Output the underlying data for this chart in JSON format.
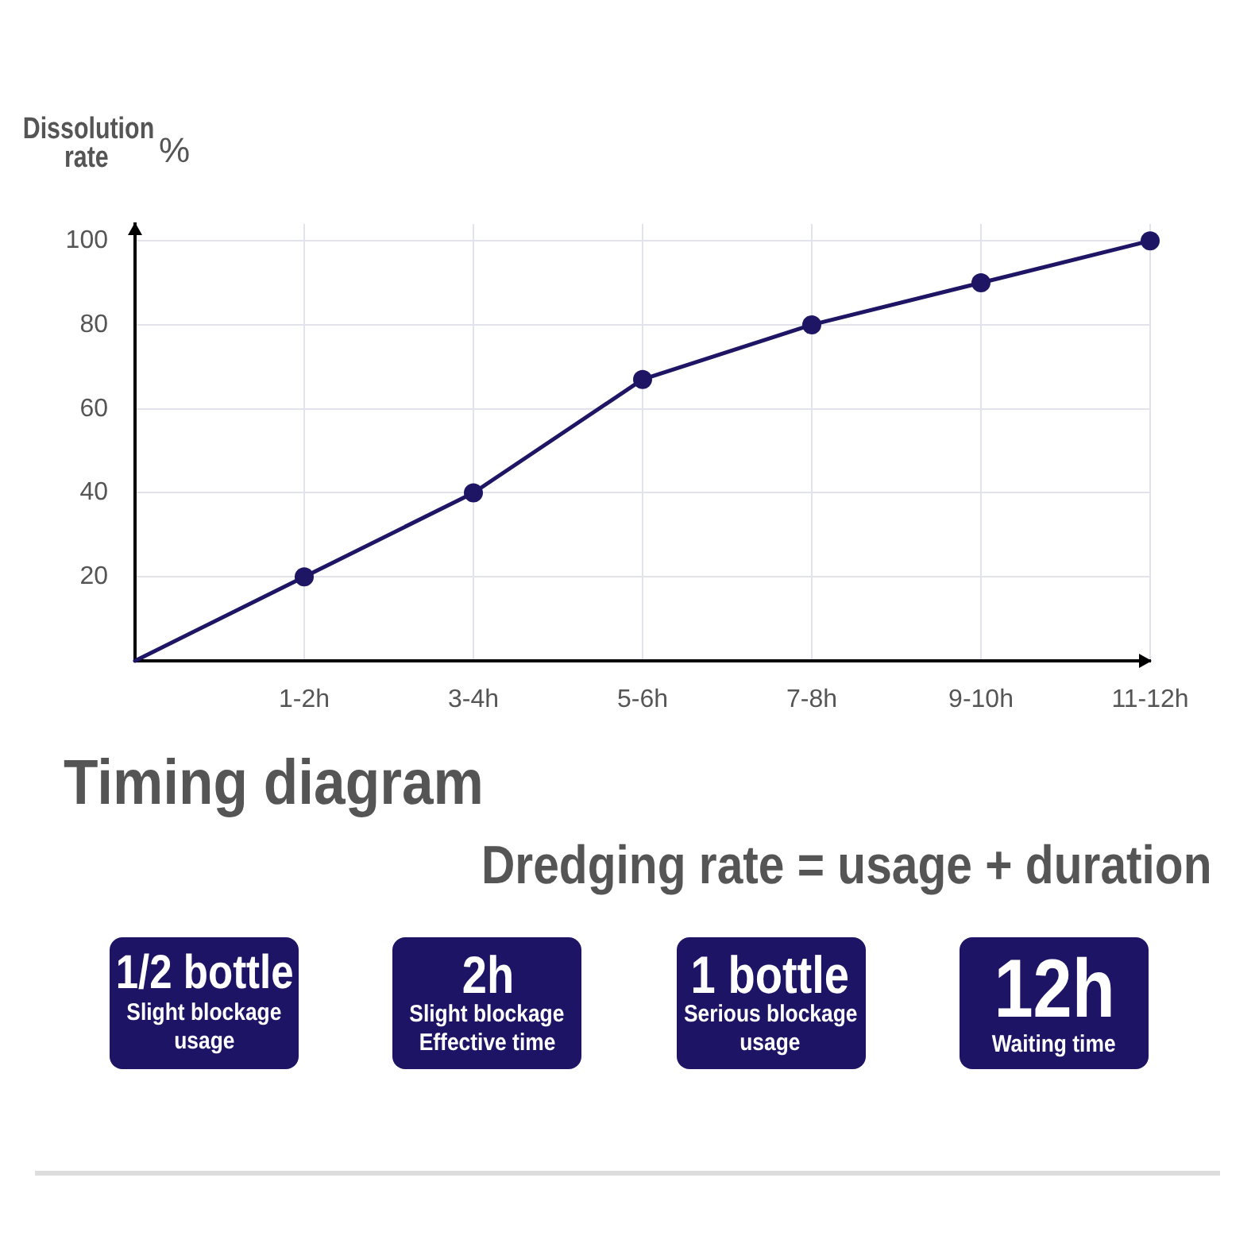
{
  "chart_data": [
    {
      "type": "line",
      "ylabel": "Dissolution rate %",
      "categories": [
        null,
        "1-2h",
        "3-4h",
        "5-6h",
        "7-8h",
        "9-10h",
        "11-12h"
      ],
      "values": [
        0,
        20,
        40,
        67,
        80,
        90,
        100
      ],
      "color": "#1e1664",
      "ylim": [
        0,
        104
      ],
      "yticks": [
        20,
        40,
        60,
        80,
        100
      ],
      "grid": true,
      "marker": "circle"
    },
    {
      "type": "other",
      "title": "Timing diagram",
      "subtitle": "Dredging rate = usage + duration",
      "annotations": [
        "1/2 bottle\nSlight blockage\nusage",
        "2h\nSlight blockage\nEffective time",
        "1 bottle\nSerious blockage\nusage",
        "12h\nWaiting time"
      ]
    }
  ]
}
